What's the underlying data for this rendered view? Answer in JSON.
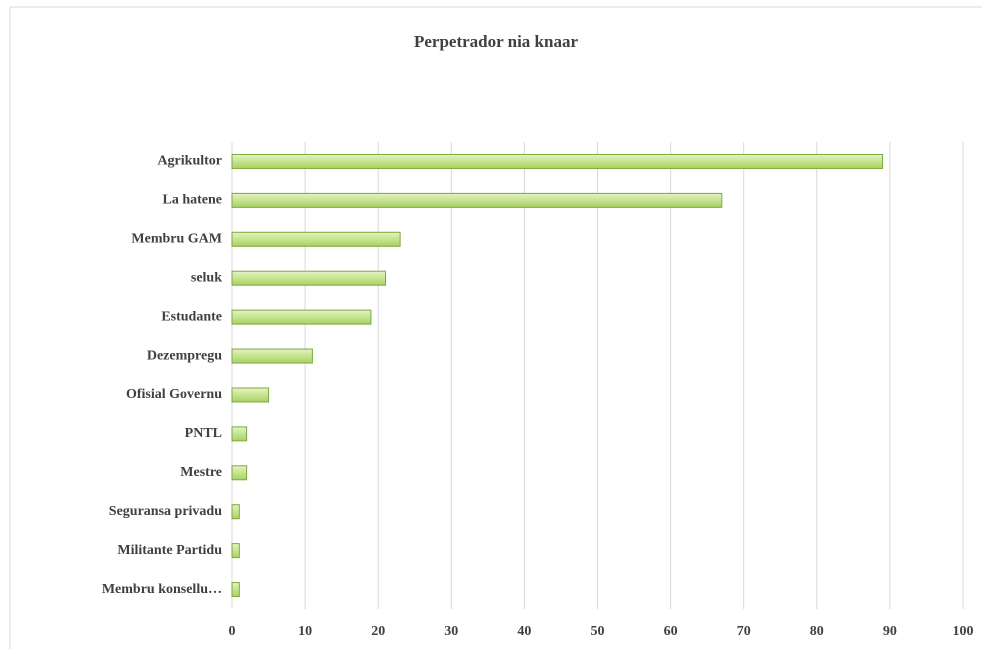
{
  "chart_data": {
    "type": "bar",
    "orientation": "horizontal",
    "title": "Perpetrador nia knaar",
    "categories": [
      "Agrikultor",
      "La hatene",
      "Membru GAM",
      "seluk",
      "Estudante",
      "Dezempregu",
      "Ofisial Governu",
      "PNTL",
      "Mestre",
      "Seguransa privadu",
      "Militante Partidu",
      "Membru konsellu…"
    ],
    "values": [
      89,
      67,
      23,
      21,
      19,
      11,
      5,
      2,
      2,
      1,
      1,
      1
    ],
    "color": "#c5e48e",
    "edge_color": "#7ea83f",
    "xlim": [
      0,
      100
    ],
    "xticks": [
      0,
      10,
      20,
      30,
      40,
      50,
      60,
      70,
      80,
      90,
      100
    ],
    "grid": true
  }
}
